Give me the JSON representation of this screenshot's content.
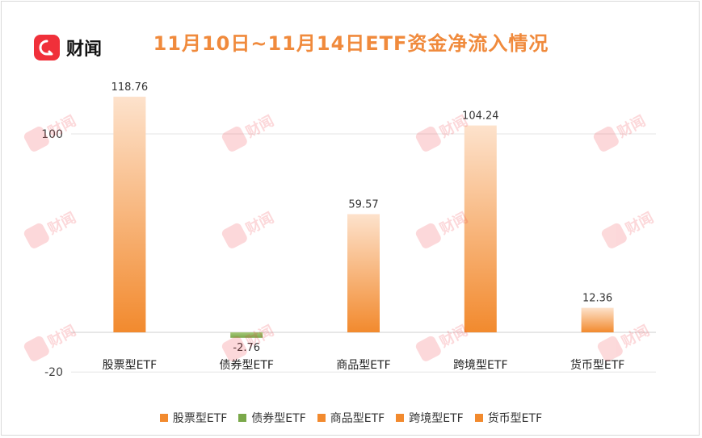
{
  "brand": {
    "name": "财闻",
    "watermark": "财闻"
  },
  "colors": {
    "positive_top": "#fde2cc",
    "positive_bottom": "#f28a2e",
    "negative_top": "#a7c97a",
    "negative_bottom": "#7aa84a",
    "title": "#f08a3c"
  },
  "chart_data": {
    "type": "bar",
    "title": "11月10日~11月14日ETF资金净流入情况",
    "categories": [
      "股票型ETF",
      "债券型ETF",
      "商品型ETF",
      "跨境型ETF",
      "货币型ETF"
    ],
    "values": [
      118.76,
      -2.76,
      59.57,
      104.24,
      12.36
    ],
    "value_labels": [
      "118.76",
      "-2.76",
      "59.57",
      "104.24",
      "12.36"
    ],
    "ylim": [
      -20,
      120
    ],
    "yticks": [
      {
        "value": 100,
        "label": "100"
      },
      {
        "value": -20,
        "label": "-20"
      }
    ],
    "legend": {
      "entries": [
        "股票型ETF",
        "债券型ETF",
        "商品型ETF",
        "跨境型ETF",
        "货币型ETF"
      ],
      "placement": "bottom"
    },
    "grid": true
  }
}
